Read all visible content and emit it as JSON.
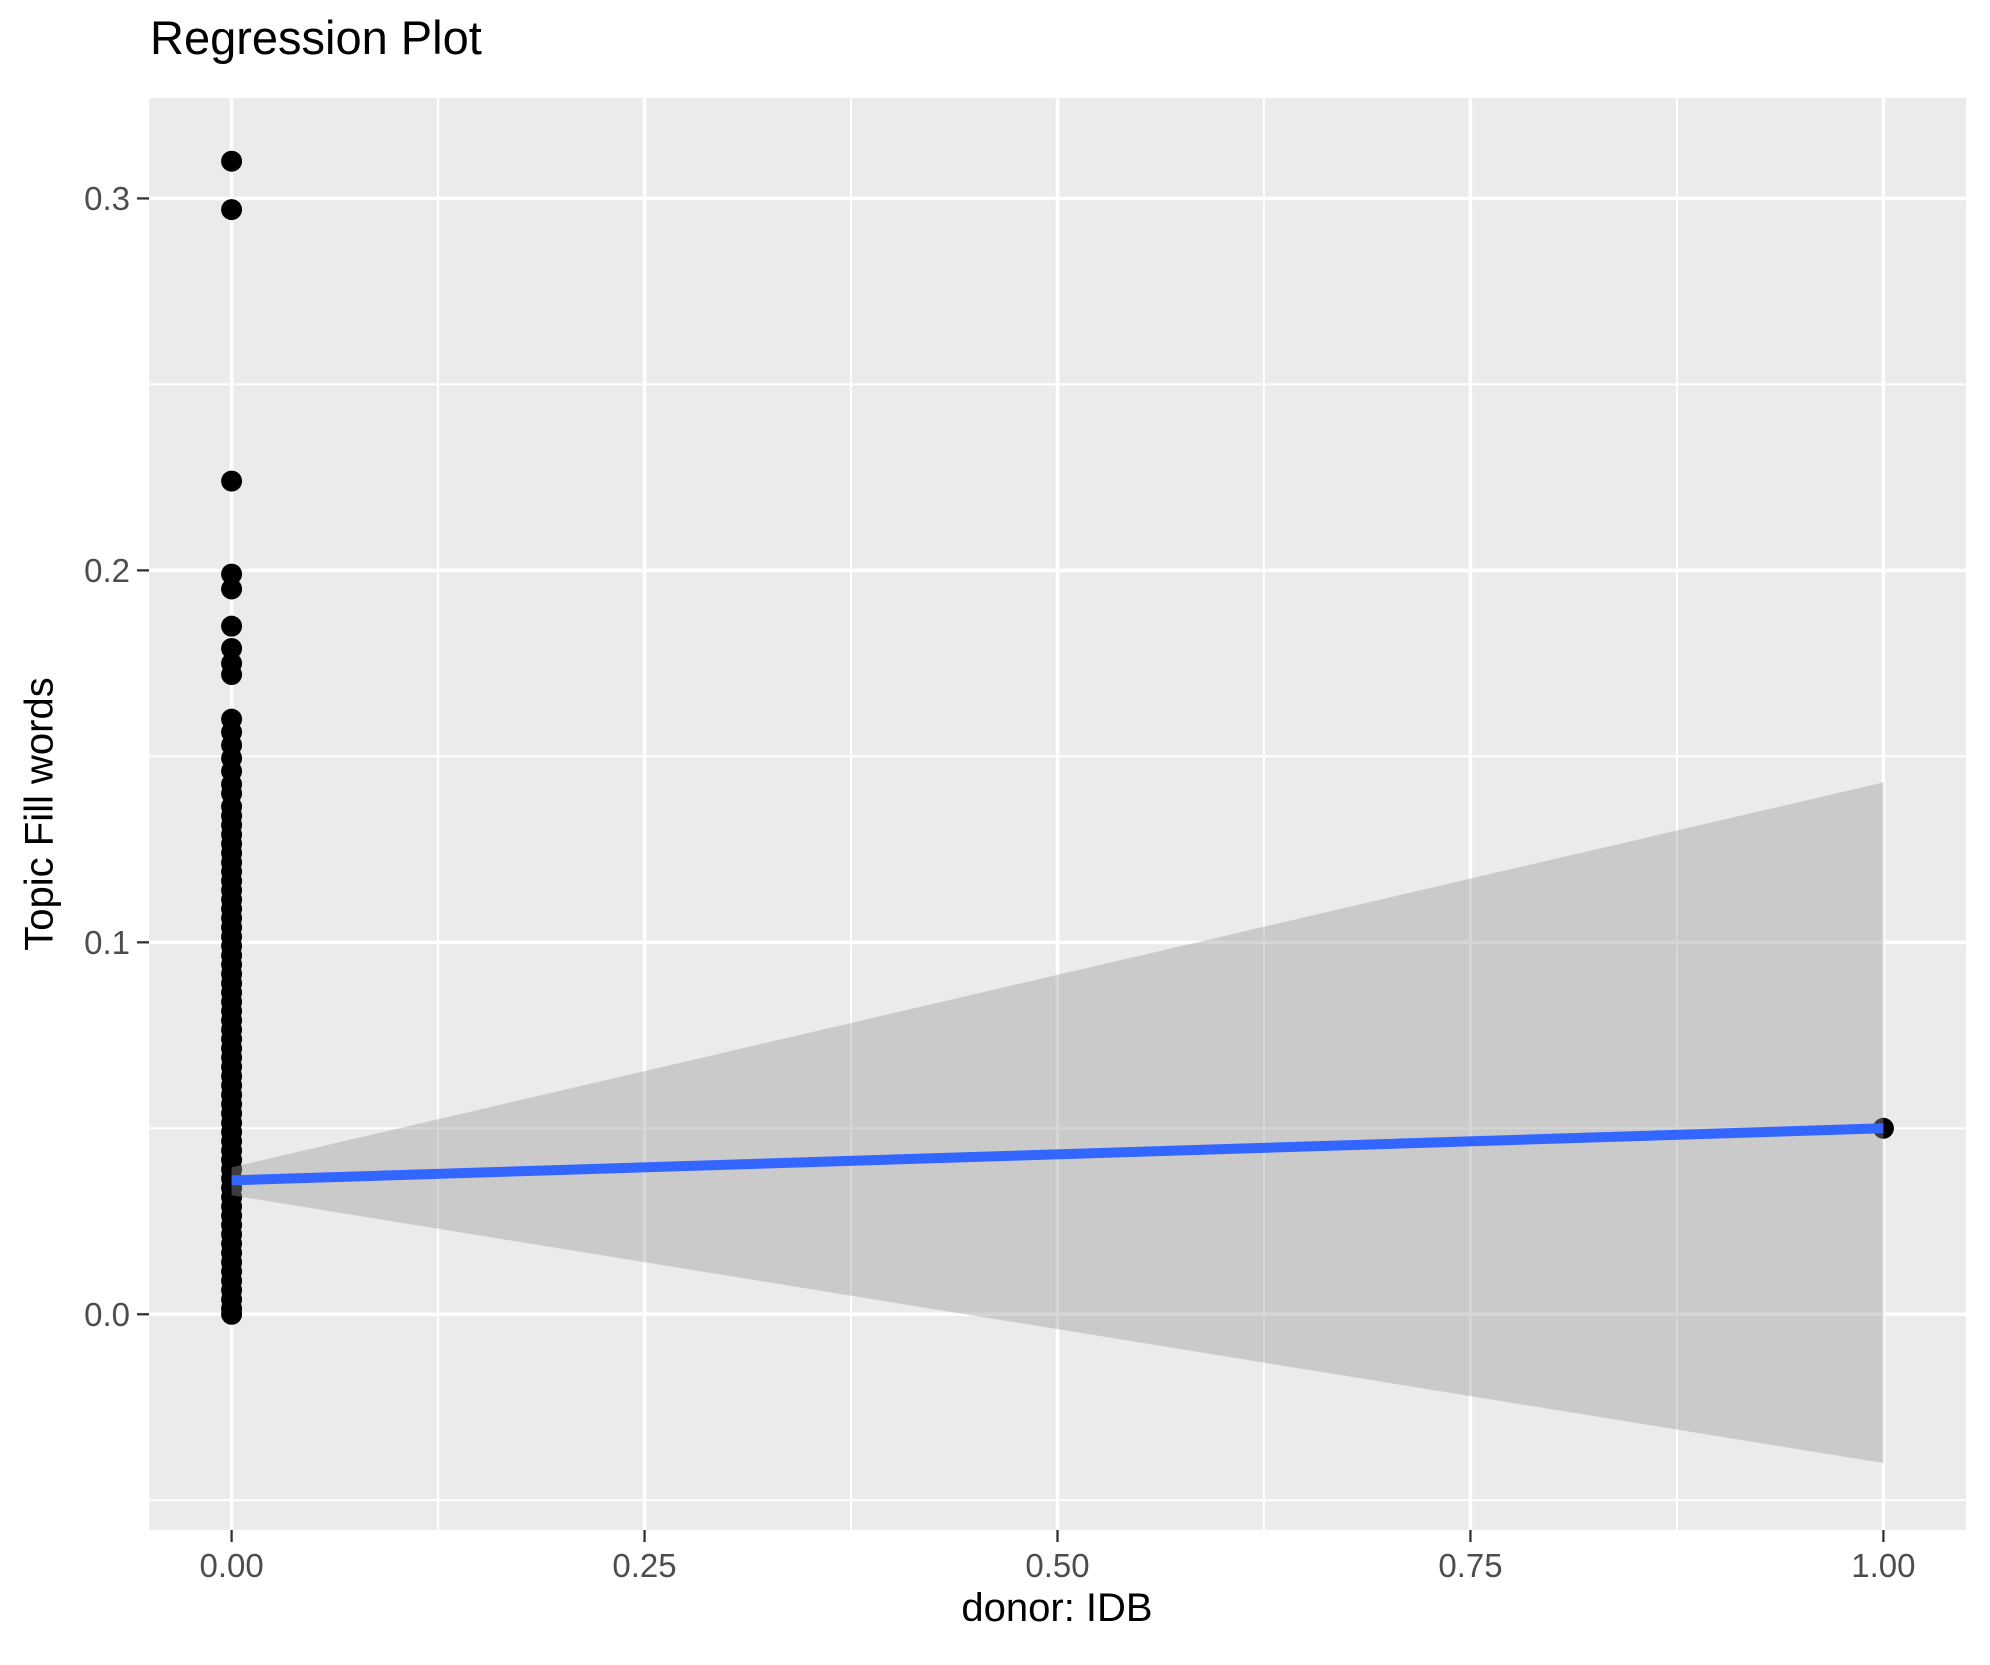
{
  "title": "Regression Plot",
  "chart_data": {
    "type": "scatter",
    "title": "Regression Plot",
    "xlabel": "donor: IDB",
    "ylabel": "Topic Fill words",
    "grid": true,
    "legend": false,
    "xlim": [
      -0.05,
      1.05
    ],
    "ylim": [
      -0.058,
      0.327
    ],
    "xtick_values": [
      0.0,
      0.25,
      0.5,
      0.75,
      1.0
    ],
    "xtick_labels": [
      "0.00",
      "0.25",
      "0.50",
      "0.75",
      "1.00"
    ],
    "ytick_values": [
      0.0,
      0.1,
      0.2,
      0.3
    ],
    "ytick_labels": [
      "0.0",
      "0.1",
      "0.2",
      "0.3"
    ],
    "x_minor_ticks": [
      0.125,
      0.375,
      0.625,
      0.875
    ],
    "y_minor_ticks": [
      -0.05,
      0.05,
      0.15,
      0.25
    ],
    "scatter_points": {
      "x0": {
        "x": 0,
        "y_values": [
          0.31,
          0.297,
          0.224,
          0.199,
          0.195,
          0.185,
          0.179,
          0.175,
          0.172,
          0.16,
          0.1565,
          0.153,
          0.1495,
          0.146,
          0.1425,
          0.14,
          0.1365,
          0.134,
          0.1315,
          0.129,
          0.1265,
          0.124,
          0.1215,
          0.119,
          0.1165,
          0.114,
          0.1115,
          0.109,
          0.1065,
          0.104,
          0.1015,
          0.099,
          0.0965,
          0.094,
          0.0915,
          0.089,
          0.0865,
          0.084,
          0.0815,
          0.079,
          0.0765,
          0.074,
          0.0715,
          0.069,
          0.0665,
          0.064,
          0.0615,
          0.059,
          0.0565,
          0.054,
          0.0515,
          0.049,
          0.0465,
          0.044,
          0.0415,
          0.039,
          0.0365,
          0.034,
          0.0315,
          0.029,
          0.0265,
          0.024,
          0.0215,
          0.019,
          0.0165,
          0.014,
          0.0115,
          0.009,
          0.0065,
          0.004,
          0.0015,
          0.0
        ]
      },
      "x1": {
        "x": 1,
        "y_values": [
          0.05
        ]
      }
    },
    "regression_line": {
      "x": [
        0,
        1
      ],
      "y": [
        0.036,
        0.05
      ],
      "color": "#3366FF",
      "width": 10
    },
    "confidence_band": {
      "x": [
        0,
        1
      ],
      "upper": [
        0.0395,
        0.143
      ],
      "lower": [
        0.032,
        -0.04
      ],
      "fill_rgba": [
        153,
        153,
        153,
        0.4
      ]
    },
    "colors": {
      "panel_background": "#EBEBEB",
      "gridline": "#FFFFFF",
      "point": "#000000",
      "tick_mark": "#333333",
      "tick_label": "#4D4D4D",
      "axis_title": "#000000",
      "title": "#000000",
      "smooth_line": "#3366FF"
    }
  }
}
